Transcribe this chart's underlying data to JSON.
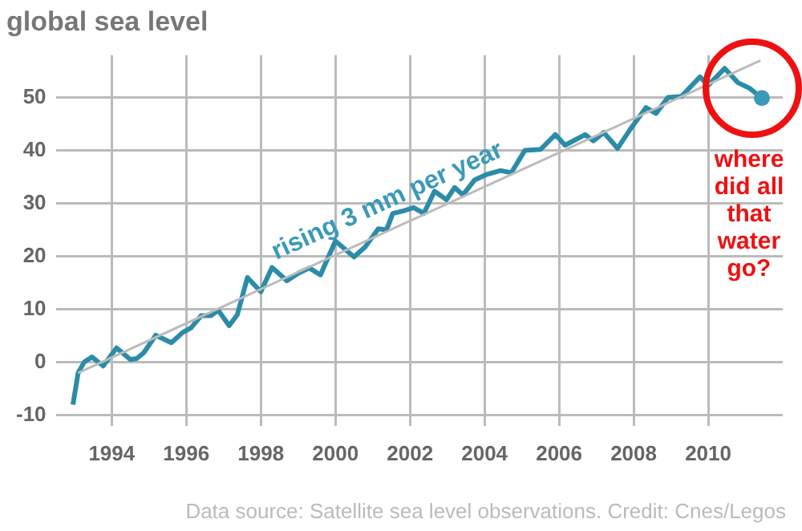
{
  "chart_data": {
    "type": "line",
    "title": "global sea level",
    "series": [
      {
        "color": "#bbbbbb",
        "x": [
          1993.1,
          2011.4
        ],
        "values": [
          -2,
          57
        ]
      },
      {
        "color": "#2b8ca8",
        "x": [
          1992.96,
          1993.1,
          1993.26,
          1993.47,
          1993.77,
          1994.13,
          1994.5,
          1994.67,
          1994.86,
          1995.18,
          1995.6,
          1995.9,
          1996.13,
          1996.4,
          1996.66,
          1996.86,
          1997.15,
          1997.37,
          1997.64,
          1998.0,
          1998.3,
          1998.7,
          1999.0,
          1999.3,
          1999.6,
          2000.0,
          2000.5,
          2000.8,
          2001.15,
          2001.37,
          2001.54,
          2001.83,
          2002.1,
          2002.37,
          2002.66,
          2002.98,
          2003.2,
          2003.42,
          2003.73,
          2004.07,
          2004.43,
          2004.72,
          2005.08,
          2005.5,
          2005.9,
          2006.16,
          2006.7,
          2006.92,
          2007.2,
          2007.57,
          2007.9,
          2008.33,
          2008.6,
          2008.92,
          2009.28,
          2009.78,
          2010.0,
          2010.44,
          2010.8,
          2011.1,
          2011.44
        ],
        "values": [
          -8,
          -2,
          0,
          1,
          -0.7,
          2.7,
          0.5,
          0.7,
          1.8,
          5.1,
          3.7,
          5.6,
          6.5,
          8.8,
          8.8,
          9.8,
          6.9,
          9,
          16,
          13.3,
          17.9,
          15.4,
          16.8,
          17.8,
          16.5,
          22.9,
          19.9,
          21.8,
          25.2,
          25,
          28.1,
          28.6,
          29.2,
          28.1,
          32.3,
          30.7,
          33,
          31.6,
          34.4,
          35.5,
          36.2,
          35.8,
          40,
          40.2,
          43,
          41,
          43,
          41.8,
          43.4,
          40.4,
          43.9,
          48.1,
          47,
          50,
          50.2,
          53.9,
          52.3,
          55.5,
          52.8,
          51.8,
          49.9
        ]
      }
    ],
    "xlim": [
      1992.5,
      2012
    ],
    "xticks": [
      1994,
      1996,
      1998,
      2000,
      2002,
      2004,
      2006,
      2008,
      2010
    ],
    "ylim": [
      -12,
      58
    ],
    "yticks": [
      -10,
      0,
      10,
      20,
      30,
      40,
      50
    ],
    "grid": true,
    "annotations": [
      "rising 3 mm per year",
      {
        "text": "where did all that water go?",
        "x": 2011.44,
        "y": 49.9
      },
      "Data source: Satellite sea level observations. Credit: Cnes/Legos"
    ]
  }
}
